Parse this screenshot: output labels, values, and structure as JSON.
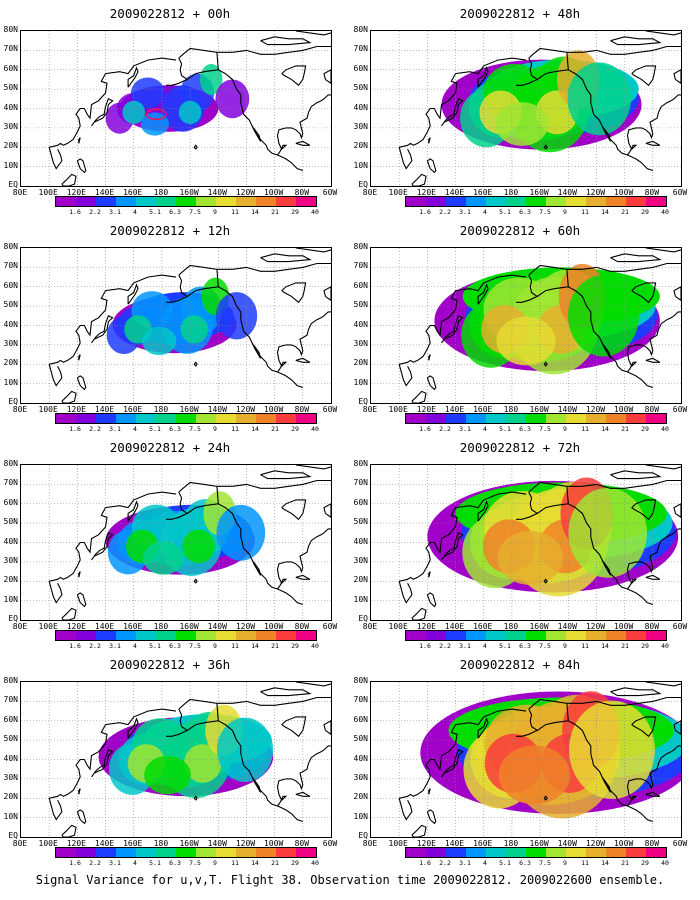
{
  "caption": "Signal Variance for u,v,T. Flight 38. Observation time 2009022812. 2009022600 ensemble.",
  "lat_labels": [
    "80N",
    "70N",
    "60N",
    "50N",
    "40N",
    "30N",
    "20N",
    "10N",
    "EQ"
  ],
  "lon_labels": [
    "80E",
    "100E",
    "120E",
    "140E",
    "160E",
    "180",
    "160W",
    "140W",
    "120W",
    "100W",
    "80W",
    "60W"
  ],
  "colorbar": {
    "labels": [
      "1.6",
      "2.2",
      "3.1",
      "4",
      "5.1",
      "6.3",
      "7.5",
      "9",
      "11",
      "14",
      "21",
      "29",
      "40"
    ],
    "colors": [
      "#a000c8",
      "#8200dc",
      "#1e3cff",
      "#0096ff",
      "#00c8c8",
      "#00d28c",
      "#00dc00",
      "#a0e632",
      "#e6dc32",
      "#e6af2d",
      "#f08228",
      "#fa3c3c",
      "#f00082"
    ]
  },
  "panels": [
    {
      "title": "2009022812 + 00h",
      "level": 0,
      "marker": "red-contour"
    },
    {
      "title": "2009022812 + 48h",
      "level": 4
    },
    {
      "title": "2009022812 + 12h",
      "level": 1
    },
    {
      "title": "2009022812 + 60h",
      "level": 5
    },
    {
      "title": "2009022812 + 24h",
      "level": 2
    },
    {
      "title": "2009022812 + 72h",
      "level": 6
    },
    {
      "title": "2009022812 + 36h",
      "level": 3
    },
    {
      "title": "2009022812 + 84h",
      "level": 7
    }
  ]
}
